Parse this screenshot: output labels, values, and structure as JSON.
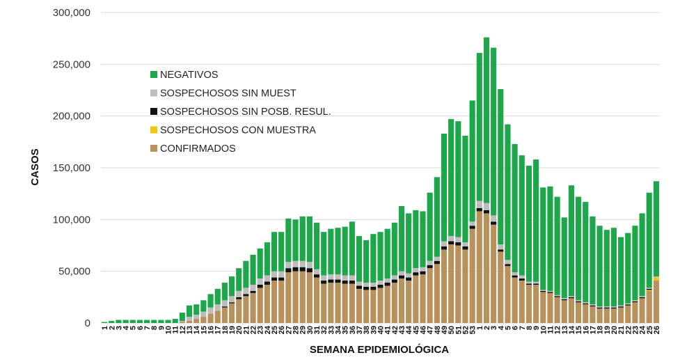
{
  "chart_data": {
    "type": "bar",
    "stacked": true,
    "title": "",
    "xlabel": "SEMANA EPIDEMIOLÓGICA",
    "ylabel": "CASOS",
    "ylim": [
      0,
      300000
    ],
    "yticks": [
      0,
      50000,
      100000,
      150000,
      200000,
      250000,
      300000
    ],
    "ytick_labels": [
      "0",
      "50,000",
      "100,000",
      "150,000",
      "200,000",
      "250,000",
      "300,000"
    ],
    "grid": "horizontal",
    "legend_position": "top-left",
    "categories": [
      "1",
      "2",
      "3",
      "4",
      "5",
      "6",
      "7",
      "8",
      "9",
      "10",
      "11",
      "12",
      "13",
      "14",
      "15",
      "16",
      "17",
      "18",
      "19",
      "20",
      "21",
      "22",
      "23",
      "24",
      "25",
      "26",
      "27",
      "28",
      "29",
      "30",
      "31",
      "32",
      "33",
      "34",
      "35",
      "36",
      "37",
      "38",
      "39",
      "40",
      "41",
      "42",
      "43",
      "44",
      "45",
      "46",
      "47",
      "48",
      "49",
      "50",
      "51",
      "52",
      "53",
      "1",
      "2",
      "3",
      "4",
      "5",
      "6",
      "7",
      "8",
      "9",
      "10",
      "11",
      "12",
      "13",
      "14",
      "15",
      "16",
      "17",
      "18",
      "19",
      "20",
      "21",
      "22",
      "23",
      "24",
      "25",
      "26"
    ],
    "series": [
      {
        "name": "CONFIRMADOS",
        "color": "#b8915c",
        "values": [
          0,
          0,
          0,
          0,
          0,
          0,
          0,
          0,
          0,
          0,
          0,
          1000,
          2000,
          4000,
          6000,
          9000,
          12000,
          15000,
          19000,
          23000,
          26000,
          29000,
          34000,
          37000,
          41000,
          41000,
          49000,
          50000,
          50000,
          49000,
          44000,
          38000,
          39000,
          39000,
          38000,
          38000,
          33000,
          32000,
          32000,
          34000,
          36000,
          39000,
          43000,
          41000,
          46000,
          47000,
          53000,
          57000,
          71000,
          76000,
          75000,
          71000,
          91000,
          108000,
          106000,
          95000,
          69000,
          55000,
          44000,
          41000,
          37000,
          37000,
          30000,
          29000,
          25000,
          22000,
          24000,
          20000,
          18000,
          16000,
          14000,
          14000,
          14000,
          15000,
          17000,
          20000,
          24000,
          31000,
          41000
        ]
      },
      {
        "name": "SOSPECHOSOS CON MUESTRA",
        "color": "#f2c40f",
        "values": [
          0,
          0,
          0,
          0,
          0,
          0,
          0,
          0,
          0,
          0,
          0,
          0,
          0,
          0,
          0,
          0,
          0,
          0,
          0,
          0,
          0,
          0,
          0,
          0,
          0,
          0,
          0,
          0,
          0,
          0,
          0,
          0,
          0,
          0,
          0,
          0,
          0,
          0,
          0,
          0,
          0,
          0,
          0,
          0,
          0,
          0,
          0,
          0,
          0,
          0,
          0,
          0,
          0,
          0,
          0,
          0,
          0,
          0,
          0,
          0,
          0,
          0,
          0,
          0,
          0,
          0,
          0,
          0,
          0,
          0,
          0,
          0,
          0,
          0,
          0,
          0,
          0,
          1000,
          3000
        ]
      },
      {
        "name": "SOSPECHOSOS SIN POSB. RESUL.",
        "color": "#111111",
        "values": [
          0,
          0,
          0,
          0,
          0,
          0,
          0,
          0,
          0,
          0,
          0,
          0,
          0,
          0,
          0,
          0,
          0,
          1000,
          1000,
          2000,
          2000,
          2000,
          3000,
          3000,
          3000,
          3000,
          4000,
          4000,
          4000,
          4000,
          3000,
          3000,
          3000,
          3000,
          3000,
          3000,
          3000,
          3000,
          3000,
          3000,
          3000,
          3000,
          3000,
          3000,
          3000,
          3000,
          3000,
          3000,
          3000,
          3000,
          3000,
          3000,
          3000,
          3000,
          3000,
          3000,
          2000,
          2000,
          2000,
          2000,
          1000,
          1000,
          1000,
          1000,
          1000,
          1000,
          1000,
          1000,
          1000,
          1000,
          1000,
          1000,
          1000,
          1000,
          1000,
          1000,
          1000,
          1000,
          0
        ]
      },
      {
        "name": "SOSPECHOSOS SIN MUEST",
        "color": "#bdbdbd",
        "values": [
          0,
          0,
          0,
          0,
          0,
          0,
          0,
          0,
          0,
          0,
          0,
          1000,
          4000,
          4000,
          5000,
          6000,
          6000,
          6000,
          6000,
          6000,
          6000,
          6000,
          6000,
          6000,
          6000,
          6000,
          6000,
          6000,
          6000,
          6000,
          5000,
          5000,
          5000,
          5000,
          5000,
          5000,
          4000,
          4000,
          4000,
          4000,
          4000,
          4000,
          4000,
          4000,
          4000,
          4000,
          4000,
          4000,
          5000,
          5000,
          5000,
          4000,
          4000,
          7000,
          7000,
          6000,
          5000,
          4000,
          3000,
          3000,
          2000,
          2000,
          1000,
          1000,
          1000,
          1000,
          1000,
          1000,
          1000,
          1000,
          1000,
          1000,
          1000,
          1000,
          1000,
          1000,
          1000,
          1000,
          1000
        ]
      },
      {
        "name": "NEGATIVOS",
        "color": "#1ea64b",
        "values": [
          1000,
          2000,
          3000,
          3000,
          3000,
          3000,
          3000,
          3000,
          3000,
          3000,
          4000,
          8000,
          11000,
          10000,
          11000,
          13000,
          15000,
          17000,
          19000,
          22000,
          26000,
          29000,
          29000,
          32000,
          38000,
          38000,
          42000,
          40000,
          43000,
          44000,
          45000,
          42000,
          44000,
          45000,
          47000,
          52000,
          44000,
          41000,
          47000,
          47000,
          48000,
          51000,
          63000,
          58000,
          56000,
          54000,
          66000,
          77000,
          104000,
          113000,
          112000,
          103000,
          117000,
          143000,
          160000,
          162000,
          150000,
          131000,
          124000,
          116000,
          112000,
          118000,
          99000,
          101000,
          95000,
          78000,
          107000,
          100000,
          97000,
          85000,
          78000,
          74000,
          76000,
          66000,
          68000,
          72000,
          80000,
          92000,
          92000
        ]
      }
    ],
    "legend_order": [
      "NEGATIVOS",
      "SOSPECHOSOS SIN MUEST",
      "SOSPECHOSOS SIN POSB. RESUL.",
      "SOSPECHOSOS CON MUESTRA",
      "CONFIRMADOS"
    ]
  }
}
